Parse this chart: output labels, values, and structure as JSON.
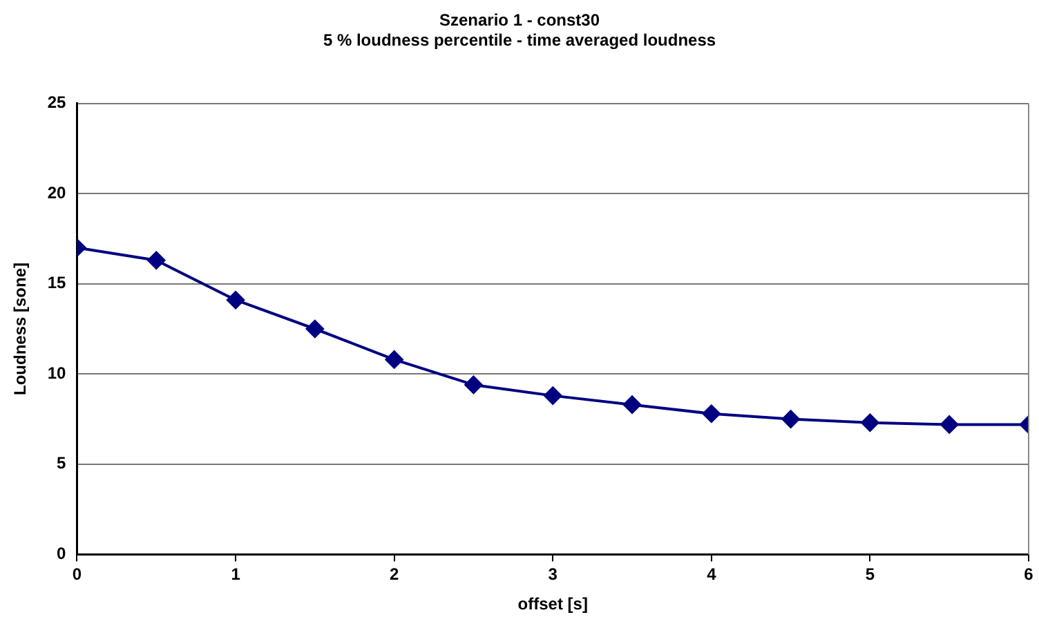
{
  "chart_data": {
    "type": "line",
    "title": "Szenario 1 - const30",
    "subtitle": "5 % loudness percentile - time averaged loudness",
    "xlabel": "offset [s]",
    "ylabel": "Loudness [sone]",
    "x": [
      0,
      0.5,
      1,
      1.5,
      2,
      2.5,
      3,
      3.5,
      4,
      4.5,
      5,
      5.5,
      6
    ],
    "series": [
      {
        "color": "#000080",
        "values": [
          17.0,
          16.3,
          14.1,
          12.5,
          10.8,
          9.4,
          8.8,
          8.3,
          7.8,
          7.5,
          7.3,
          7.2,
          7.2
        ]
      }
    ],
    "xlim": [
      0,
      6
    ],
    "xticks": [
      0,
      1,
      2,
      3,
      4,
      5,
      6
    ],
    "ylim": [
      0,
      25
    ],
    "yticks": [
      0,
      5,
      10,
      15,
      20,
      25
    ],
    "grid": "y",
    "legend": false,
    "marker": "diamond",
    "line_style": "solid"
  }
}
